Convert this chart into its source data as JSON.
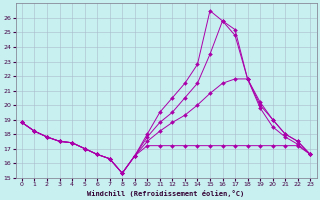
{
  "xlabel": "Windchill (Refroidissement éolien,°C)",
  "bg_color": "#c8f0f0",
  "grid_color": "#aabbcc",
  "line_color": "#aa00aa",
  "xlim": [
    -0.5,
    23.5
  ],
  "ylim": [
    15,
    27
  ],
  "xticks": [
    0,
    1,
    2,
    3,
    4,
    5,
    6,
    7,
    8,
    9,
    10,
    11,
    12,
    13,
    14,
    15,
    16,
    17,
    18,
    19,
    20,
    21,
    22,
    23
  ],
  "yticks": [
    15,
    16,
    17,
    18,
    19,
    20,
    21,
    22,
    23,
    24,
    25,
    26
  ],
  "lines": [
    {
      "x": [
        0,
        1,
        2,
        3,
        4,
        5,
        6,
        7,
        8,
        9,
        10,
        11,
        12,
        13,
        14,
        15,
        16,
        17,
        18,
        19,
        20,
        21,
        22,
        23
      ],
      "y": [
        18.8,
        18.2,
        17.8,
        17.5,
        17.4,
        17.0,
        16.6,
        16.3,
        15.3,
        16.5,
        17.2,
        17.2,
        17.2,
        17.2,
        17.2,
        17.2,
        17.2,
        17.2,
        17.2,
        17.2,
        17.2,
        17.2,
        17.2,
        16.6
      ]
    },
    {
      "x": [
        0,
        1,
        2,
        3,
        4,
        5,
        6,
        7,
        8,
        9,
        10,
        11,
        12,
        13,
        14,
        15,
        16,
        17,
        18,
        19,
        20,
        21,
        22,
        23
      ],
      "y": [
        18.8,
        18.2,
        17.8,
        17.5,
        17.4,
        17.0,
        16.6,
        16.3,
        15.3,
        16.5,
        17.5,
        18.2,
        18.8,
        19.3,
        20.0,
        20.8,
        21.5,
        21.8,
        21.8,
        19.8,
        18.5,
        17.8,
        17.3,
        16.6
      ]
    },
    {
      "x": [
        0,
        1,
        2,
        3,
        4,
        5,
        6,
        7,
        8,
        9,
        10,
        11,
        12,
        13,
        14,
        15,
        16,
        17,
        18,
        19,
        20,
        21,
        22,
        23
      ],
      "y": [
        18.8,
        18.2,
        17.8,
        17.5,
        17.4,
        17.0,
        16.6,
        16.3,
        15.3,
        16.5,
        17.8,
        18.8,
        19.5,
        20.5,
        21.5,
        23.5,
        25.8,
        25.2,
        21.8,
        20.2,
        19.0,
        18.0,
        17.5,
        16.6
      ]
    },
    {
      "x": [
        0,
        1,
        2,
        3,
        4,
        5,
        6,
        7,
        8,
        9,
        10,
        11,
        12,
        13,
        14,
        15,
        16,
        17,
        18,
        19,
        20,
        21,
        22,
        23
      ],
      "y": [
        18.8,
        18.2,
        17.8,
        17.5,
        17.4,
        17.0,
        16.6,
        16.3,
        15.3,
        16.5,
        18.0,
        19.5,
        20.5,
        21.5,
        22.8,
        26.5,
        25.8,
        24.8,
        21.8,
        20.0,
        19.0,
        18.0,
        17.5,
        16.6
      ]
    }
  ]
}
